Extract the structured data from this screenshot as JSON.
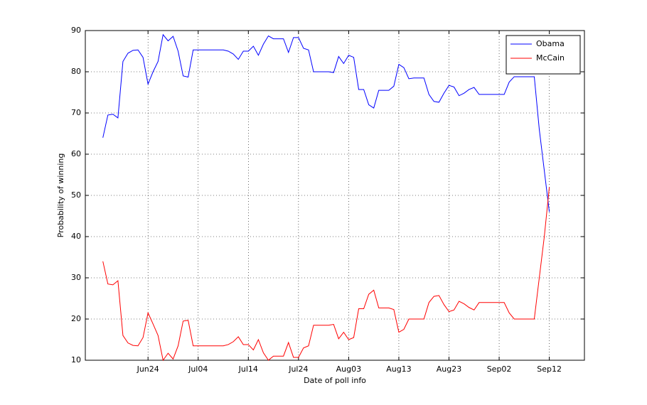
{
  "chart_data": {
    "type": "line",
    "x_label": "Date of poll info",
    "y_label": "Probability of winning",
    "x": [
      167,
      168,
      169,
      170,
      171,
      172,
      173,
      174,
      175,
      176,
      177,
      178,
      179,
      180,
      181,
      182,
      183,
      184,
      185,
      186,
      187,
      188,
      189,
      190,
      191,
      192,
      193,
      194,
      195,
      196,
      197,
      198,
      199,
      200,
      201,
      202,
      203,
      204,
      205,
      206,
      207,
      208,
      209,
      210,
      211,
      212,
      213,
      214,
      215,
      216,
      217,
      218,
      219,
      220,
      221,
      222,
      223,
      224,
      225,
      226,
      227,
      228,
      229,
      230,
      231,
      232,
      233,
      234,
      235,
      236,
      237,
      238,
      239,
      240,
      241,
      242,
      243,
      244,
      245,
      246,
      247,
      248,
      249,
      250,
      251,
      252,
      253,
      254,
      255,
      256
    ],
    "series": [
      {
        "name": "Obama",
        "color": "#0000ff",
        "values": [
          64,
          69.5,
          69.7,
          68.8,
          82.5,
          84.5,
          85.2,
          85.3,
          83.5,
          77,
          80,
          82.5,
          89,
          87.5,
          88.6,
          85,
          79,
          78.7,
          85.3,
          85.3,
          85.3,
          85.3,
          85.3,
          85.3,
          85.3,
          85,
          84.3,
          83,
          85,
          85,
          86.2,
          84,
          86.7,
          88.7,
          88,
          88,
          88,
          84.7,
          88.3,
          88.3,
          85.7,
          85.3,
          80,
          80,
          80,
          80,
          79.8,
          83.7,
          82,
          84,
          83.5,
          75.7,
          75.7,
          72,
          71.2,
          75.5,
          75.5,
          75.5,
          76.5,
          81.8,
          81,
          78.3,
          78.5,
          78.5,
          78.5,
          74.5,
          72.8,
          72.6,
          74.8,
          76.7,
          76.3,
          74.2,
          74.8,
          75.7,
          76.2,
          74.5,
          74.5,
          74.5,
          74.5,
          74.5,
          74.5,
          77.5,
          78.8,
          78.8,
          78.8,
          78.8,
          78.8,
          66,
          56,
          46
        ]
      },
      {
        "name": "McCain",
        "color": "#ff0000",
        "values": [
          34,
          28.5,
          28.3,
          29.3,
          16,
          14.2,
          13.6,
          13.5,
          15.5,
          21.5,
          18.8,
          16,
          10,
          11.7,
          10.3,
          13.5,
          19.5,
          19.7,
          13.5,
          13.5,
          13.5,
          13.5,
          13.5,
          13.5,
          13.5,
          13.8,
          14.5,
          15.7,
          13.8,
          13.8,
          12.5,
          15,
          11.8,
          10,
          11,
          11,
          11,
          14.3,
          10.7,
          10.7,
          13,
          13.5,
          18.5,
          18.5,
          18.5,
          18.5,
          18.7,
          15.2,
          16.8,
          15,
          15.5,
          22.5,
          22.5,
          26,
          27,
          22.7,
          22.7,
          22.7,
          22.3,
          16.8,
          17.5,
          20,
          20,
          20,
          20,
          24,
          25.5,
          25.7,
          23.5,
          21.8,
          22.2,
          24.3,
          23.7,
          22.8,
          22.2,
          24,
          24,
          24,
          24,
          24,
          24,
          21.5,
          20,
          20,
          20,
          20,
          20,
          30,
          40,
          52
        ]
      }
    ],
    "xlim": [
      163.5,
      263
    ],
    "xticks": [
      {
        "value": 176,
        "label": "Jun24"
      },
      {
        "value": 186,
        "label": "Jul04"
      },
      {
        "value": 196,
        "label": "Jul14"
      },
      {
        "value": 206,
        "label": "Jul24"
      },
      {
        "value": 216,
        "label": "Aug03"
      },
      {
        "value": 226,
        "label": "Aug13"
      },
      {
        "value": 236,
        "label": "Aug23"
      },
      {
        "value": 246,
        "label": "Sep02"
      },
      {
        "value": 256,
        "label": "Sep12"
      }
    ],
    "ylim": [
      10,
      90
    ],
    "yticks": [
      10,
      20,
      30,
      40,
      50,
      60,
      70,
      80,
      90
    ],
    "grid": true,
    "legend": "northeast"
  }
}
